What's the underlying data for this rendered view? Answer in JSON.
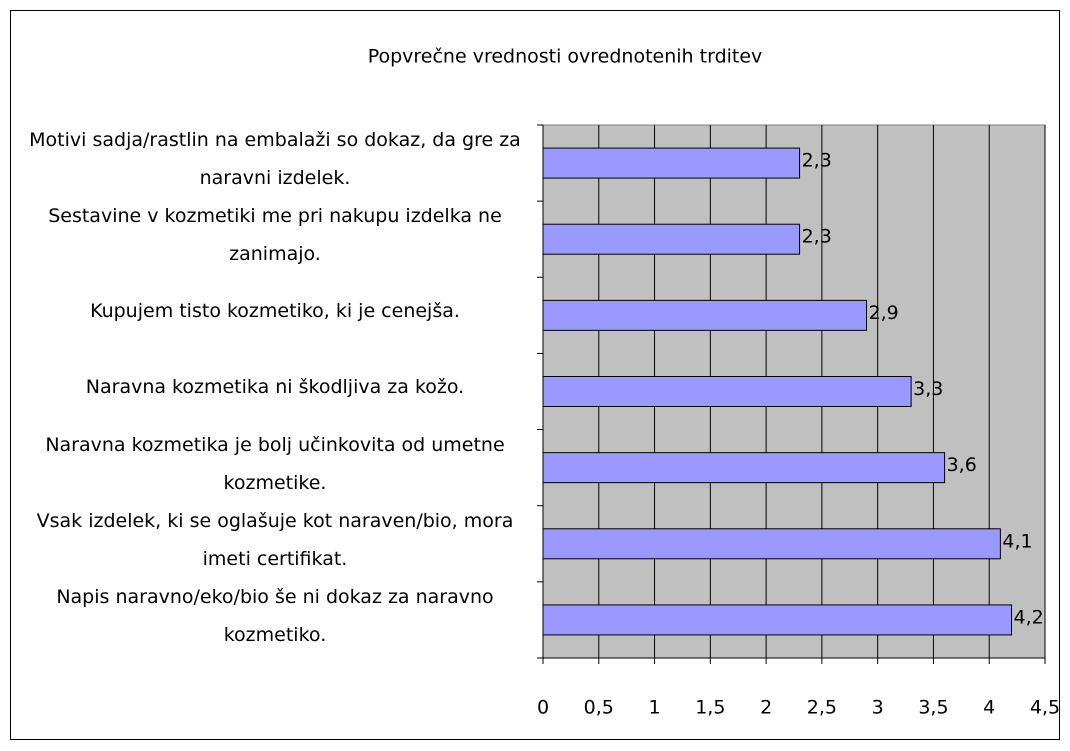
{
  "chart_data": {
    "type": "bar",
    "orientation": "horizontal",
    "title": "Popvrečne vrednosti ovrednotenih trditev",
    "categories": [
      "Motivi sadja/rastlin na embalaži so dokaz, da gre za naravni izdelek.",
      "Sestavine v kozmetiki me pri nakupu izdelka ne zanimajo.",
      "Kupujem tisto kozmetiko, ki je cenejša.",
      "Naravna kozmetika ni škodljiva za kožo.",
      "Naravna kozmetika je bolj učinkovita od umetne kozmetike.",
      "Vsak izdelek, ki se oglašuje kot naraven/bio, mora imeti certifikat.",
      "Napis naravno/eko/bio še ni dokaz za naravno kozmetiko."
    ],
    "values": [
      2.3,
      2.3,
      2.9,
      3.3,
      3.6,
      4.1,
      4.2
    ],
    "value_labels": [
      "2,3",
      "2,3",
      "2,9",
      "3,3",
      "3,6",
      "4,1",
      "4,2"
    ],
    "color": "#9999ff",
    "xlim": [
      0,
      4.5
    ],
    "xticks": [
      0,
      {
        "value": 0.5,
        "label": "0,5"
      },
      1,
      {
        "value": 1.5,
        "label": "1,5"
      },
      2,
      {
        "value": 2.5,
        "label": "2,5"
      },
      3,
      {
        "value": 3.5,
        "label": "3,5"
      },
      4,
      {
        "value": 4.5,
        "label": "4,5"
      }
    ],
    "grid": true
  }
}
